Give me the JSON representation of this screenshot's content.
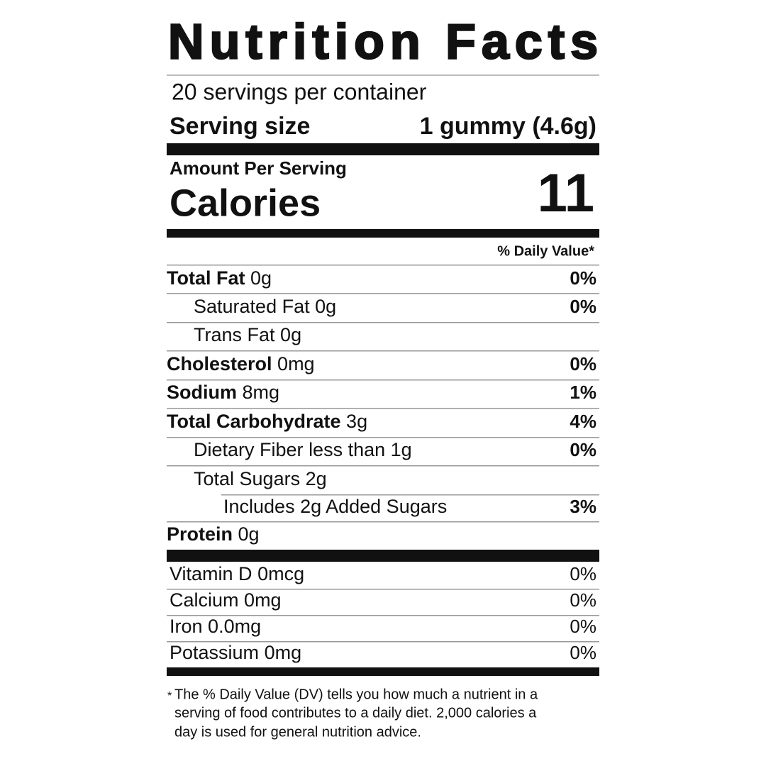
{
  "title": "Nutrition Facts",
  "servings": "20 servings per container",
  "serving_size": {
    "label": "Serving size",
    "value": "1 gummy (4.6g)"
  },
  "calories": {
    "heading": "Amount Per Serving",
    "label": "Calories",
    "value": "11"
  },
  "daily_value_header": "% Daily Value*",
  "nutrients": [
    {
      "name": "Total Fat",
      "amount": "0g",
      "dv": "0%"
    },
    {
      "name": "Saturated Fat",
      "amount": "0g",
      "dv": "0%"
    },
    {
      "name": "Trans Fat",
      "amount": "0g"
    },
    {
      "name": "Cholesterol",
      "amount": "0mg",
      "dv": "0%"
    },
    {
      "name": "Sodium",
      "amount": "8mg",
      "dv": "1%"
    },
    {
      "name": "Total Carbohydrate",
      "amount": "3g",
      "dv": "4%"
    },
    {
      "name": "Dietary Fiber",
      "amount": "less than 1g",
      "dv": "0%"
    },
    {
      "name": "Total Sugars",
      "amount": "2g"
    },
    {
      "name": "Includes 2g Added Sugars",
      "dv": "3%"
    },
    {
      "name": "Protein",
      "amount": "0g"
    }
  ],
  "vitamins": [
    {
      "name": "Vitamin D",
      "amount": "0mcg",
      "dv": "0%"
    },
    {
      "name": "Calcium",
      "amount": "0mg",
      "dv": "0%"
    },
    {
      "name": "Iron",
      "amount": "0.0mg",
      "dv": "0%"
    },
    {
      "name": "Potassium",
      "amount": "0mg",
      "dv": "0%"
    }
  ],
  "footnote": {
    "marker": "*",
    "lines": [
      "The % Daily Value (DV) tells you how much a nutrient in a",
      "serving of food contributes to a daily diet. 2,000 calories a",
      "day is used for general nutrition advice."
    ]
  }
}
